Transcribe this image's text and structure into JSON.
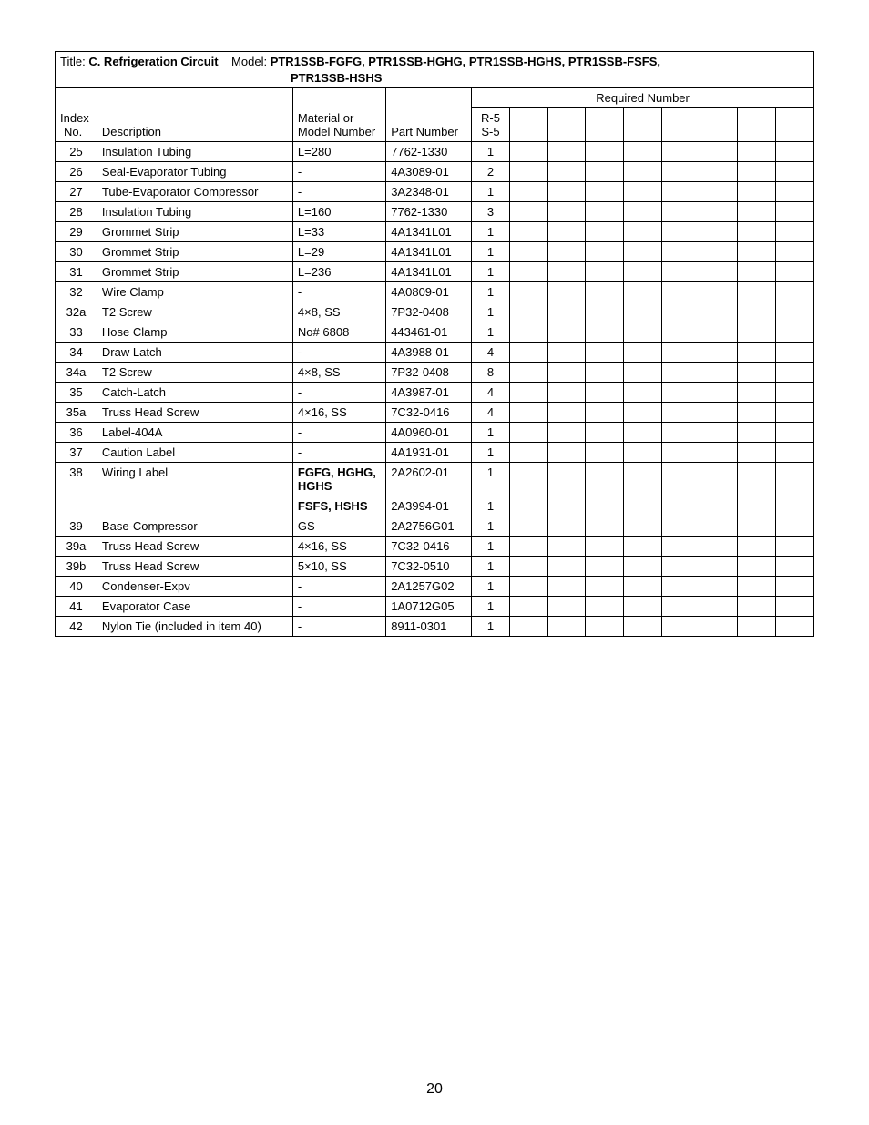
{
  "page_number": "20",
  "title_prefix": "Title: ",
  "title_bold": "C. Refrigeration Circuit",
  "model_prefix": "    Model: ",
  "model_bold_line1": "PTR1SSB-FGFG, PTR1SSB-HGHG, PTR1SSB-HGHS, PTR1SSB-FSFS,",
  "model_bold_line2": "PTR1SSB-HSHS",
  "headers": {
    "index_line1": "Index",
    "index_line2": "No.",
    "description": "Description",
    "material_line1": "Material or",
    "material_line2": "Model Number",
    "part_number": "Part Number",
    "required_number": "Required Number",
    "variant_line1": "R-5",
    "variant_line2": "S-5"
  },
  "columns_width": {
    "idx": 44,
    "desc": 206,
    "mat": 98,
    "part": 90,
    "qty": 40,
    "blank": 40
  },
  "rows": [
    {
      "idx": "25",
      "desc": "Insulation Tubing",
      "mat": "L=280",
      "part": "7762-1330",
      "qty": "1"
    },
    {
      "idx": "26",
      "desc": "Seal-Evaporator Tubing",
      "mat": "-",
      "part": "4A3089-01",
      "qty": "2"
    },
    {
      "idx": "27",
      "desc": "Tube-Evaporator Compressor",
      "mat": "-",
      "part": "3A2348-01",
      "qty": "1"
    },
    {
      "idx": "28",
      "desc": "Insulation Tubing",
      "mat": "L=160",
      "part": "7762-1330",
      "qty": "3"
    },
    {
      "idx": "29",
      "desc": "Grommet Strip",
      "mat": "L=33",
      "part": "4A1341L01",
      "qty": "1"
    },
    {
      "idx": "30",
      "desc": "Grommet Strip",
      "mat": "L=29",
      "part": "4A1341L01",
      "qty": "1"
    },
    {
      "idx": "31",
      "desc": "Grommet Strip",
      "mat": "L=236",
      "part": "4A1341L01",
      "qty": "1"
    },
    {
      "idx": "32",
      "desc": "Wire Clamp",
      "mat": "-",
      "part": "4A0809-01",
      "qty": "1"
    },
    {
      "idx": "32a",
      "desc": "T2 Screw",
      "mat": "4×8, SS",
      "part": "7P32-0408",
      "qty": "1"
    },
    {
      "idx": "33",
      "desc": "Hose Clamp",
      "mat": "No# 6808",
      "part": "443461-01",
      "qty": "1"
    },
    {
      "idx": "34",
      "desc": "Draw Latch",
      "mat": "-",
      "part": "4A3988-01",
      "qty": "4"
    },
    {
      "idx": "34a",
      "desc": "T2 Screw",
      "mat": "4×8, SS",
      "part": "7P32-0408",
      "qty": "8"
    },
    {
      "idx": "35",
      "desc": "Catch-Latch",
      "mat": "-",
      "part": "4A3987-01",
      "qty": "4"
    },
    {
      "idx": "35a",
      "desc": "Truss Head Screw",
      "mat": "4×16, SS",
      "part": "7C32-0416",
      "qty": "4"
    },
    {
      "idx": "36",
      "desc": "Label-404A",
      "mat": "-",
      "part": "4A0960-01",
      "qty": "1"
    },
    {
      "idx": "37",
      "desc": "Caution Label",
      "mat": "-",
      "part": "4A1931-01",
      "qty": "1"
    },
    {
      "idx": "38",
      "desc": "Wiring Label",
      "mat": "FGFG, HGHG, HGHS",
      "mat_bold": true,
      "part": "2A2602-01",
      "qty": "1"
    },
    {
      "idx": "",
      "desc": "",
      "mat": "FSFS, HSHS",
      "mat_bold": true,
      "part": "2A3994-01",
      "qty": "1"
    },
    {
      "idx": "39",
      "desc": "Base-Compressor",
      "mat": "GS",
      "part": "2A2756G01",
      "qty": "1"
    },
    {
      "idx": "39a",
      "desc": "Truss Head Screw",
      "mat": "4×16, SS",
      "part": "7C32-0416",
      "qty": "1"
    },
    {
      "idx": "39b",
      "desc": "Truss Head Screw",
      "mat": "5×10, SS",
      "part": "7C32-0510",
      "qty": "1"
    },
    {
      "idx": "40",
      "desc": "Condenser-Expv",
      "mat": "-",
      "part": "2A1257G02",
      "qty": "1"
    },
    {
      "idx": "41",
      "desc": "Evaporator Case",
      "mat": "-",
      "part": "1A0712G05",
      "qty": "1"
    },
    {
      "idx": "42",
      "desc": "Nylon Tie (included in item 40)",
      "mat": "-",
      "part": "8911-0301",
      "qty": "1"
    }
  ]
}
